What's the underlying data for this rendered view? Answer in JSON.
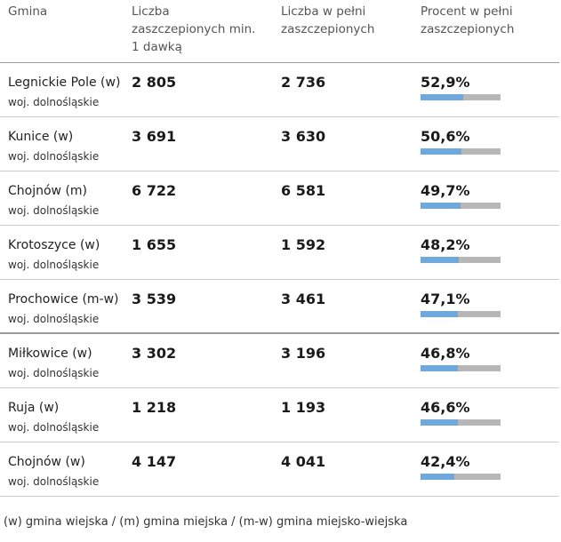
{
  "headers": {
    "gmina": "Gmina",
    "first_dose": "Liczba zaszczepionych min. 1 dawką",
    "full": "Liczba w pełni zaszczepionych",
    "percent": "Procent w pełni zaszczepionych"
  },
  "bar_color": "#6fa8dc",
  "bar_track_color": "#b7b7b7",
  "rows": [
    {
      "name": "Legnickie Pole (w)",
      "region": "woj. dolnośląskie",
      "first_dose": "2 805",
      "full": "2 736",
      "percent": "52,9%",
      "percent_value": 52.9
    },
    {
      "name": "Kunice (w)",
      "region": "woj. dolnośląskie",
      "first_dose": "3 691",
      "full": "3 630",
      "percent": "50,6%",
      "percent_value": 50.6
    },
    {
      "name": "Chojnów (m)",
      "region": "woj. dolnośląskie",
      "first_dose": "6 722",
      "full": "6 581",
      "percent": "49,7%",
      "percent_value": 49.7
    },
    {
      "name": "Krotoszyce (w)",
      "region": "woj. dolnośląskie",
      "first_dose": "1 655",
      "full": "1 592",
      "percent": "48,2%",
      "percent_value": 48.2
    },
    {
      "name": "Prochowice (m-w)",
      "region": "woj. dolnośląskie",
      "first_dose": "3 539",
      "full": "3 461",
      "percent": "47,1%",
      "percent_value": 47.1
    },
    {
      "name": "Miłkowice (w)",
      "region": "woj. dolnośląskie",
      "first_dose": "3 302",
      "full": "3 196",
      "percent": "46,8%",
      "percent_value": 46.8
    },
    {
      "name": "Ruja (w)",
      "region": "woj. dolnośląskie",
      "first_dose": "1 218",
      "full": "1 193",
      "percent": "46,6%",
      "percent_value": 46.6
    },
    {
      "name": "Chojnów (w)",
      "region": "woj. dolnośląskie",
      "first_dose": "4 147",
      "full": "4 041",
      "percent": "42,4%",
      "percent_value": 42.4
    }
  ],
  "footnote": "(w) gmina wiejska / (m) gmina miejska / (m-w) gmina miejsko-wiejska"
}
